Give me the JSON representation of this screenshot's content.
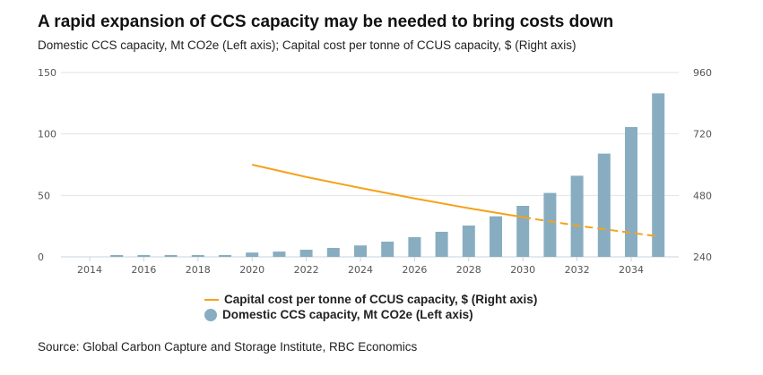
{
  "chart_data": {
    "type": "bar+line",
    "title": "A rapid expansion of CCS capacity may be needed to bring costs down",
    "subtitle": "Domestic CCS capacity, Mt CO2e (Left axis); Capital cost per tonne of CCUS capacity, $ (Right axis)",
    "x_ticks": [
      "2014",
      "2016",
      "2018",
      "2020",
      "2022",
      "2024",
      "2026",
      "2028",
      "2030",
      "2032",
      "2034"
    ],
    "left_axis": {
      "ylim": [
        0,
        150
      ],
      "ticks": [
        "0",
        "50",
        "100",
        "150"
      ]
    },
    "right_axis": {
      "ylim": [
        240,
        960
      ],
      "ticks": [
        "240",
        "480",
        "720",
        "960"
      ]
    },
    "grid": true,
    "legend_position": "bottom",
    "colors": {
      "bars": "#88adc0",
      "line": "#f5a21b"
    },
    "series": [
      {
        "name": "Domestic CCS capacity, Mt CO2e (Left axis)",
        "type": "bar",
        "axis": "left",
        "x": [
          2015,
          2016,
          2017,
          2018,
          2019,
          2020,
          2021,
          2022,
          2023,
          2024,
          2025,
          2026,
          2027,
          2028,
          2029,
          2030,
          2031,
          2032,
          2033,
          2034,
          2035
        ],
        "values": [
          1.5,
          1.5,
          1.5,
          1.5,
          1.5,
          3.5,
          4.3,
          5.8,
          7.3,
          9.3,
          12.4,
          16,
          20.4,
          25.5,
          33,
          41.5,
          52,
          66,
          84,
          105.6,
          133
        ]
      },
      {
        "name": "Capital cost per tonne of CCUS capacity, $ (Right axis)",
        "type": "line",
        "axis": "right",
        "x": [
          2020,
          2022,
          2024,
          2026,
          2028,
          2030,
          2032,
          2035
        ],
        "values": [
          600,
          552,
          509,
          468,
          430,
          395,
          362,
          320
        ],
        "dashed_from": 2030
      }
    ]
  },
  "source": "Source: Global Carbon Capture and Storage Institute, RBC Economics"
}
